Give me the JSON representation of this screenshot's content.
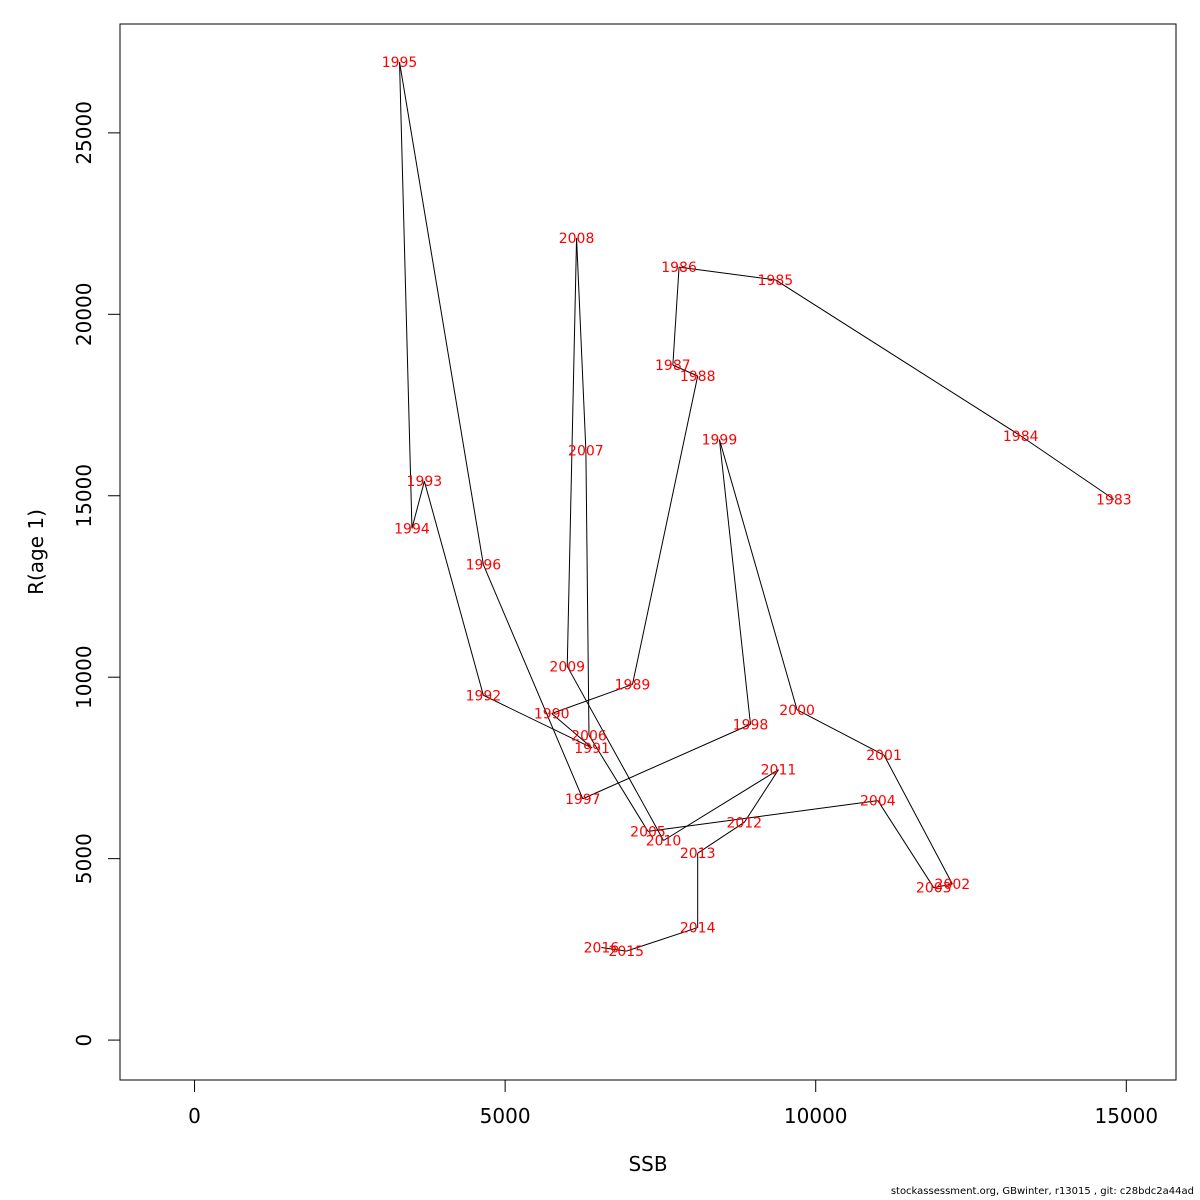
{
  "footer": "stockassessment.org, GBwinter, r13015 , git: c28bdc2a44ad",
  "chart_data": {
    "type": "line",
    "xlabel": "SSB",
    "ylabel": "R(age 1)",
    "xlim": [
      -1200,
      15800
    ],
    "ylim": [
      -1100,
      28000
    ],
    "xticks": [
      0,
      5000,
      10000,
      15000
    ],
    "yticks": [
      0,
      5000,
      10000,
      15000,
      20000,
      25000
    ],
    "grid": false,
    "line_color": "#000000",
    "label_color": "#ff0000",
    "points": [
      {
        "label": "1983",
        "x": 14800,
        "y": 14900
      },
      {
        "label": "1984",
        "x": 13300,
        "y": 16650
      },
      {
        "label": "1985",
        "x": 9350,
        "y": 20950
      },
      {
        "label": "1986",
        "x": 7800,
        "y": 21300
      },
      {
        "label": "1987",
        "x": 7700,
        "y": 18600
      },
      {
        "label": "1988",
        "x": 8100,
        "y": 18300
      },
      {
        "label": "1989",
        "x": 7050,
        "y": 9800
      },
      {
        "label": "1990",
        "x": 5750,
        "y": 9000
      },
      {
        "label": "1991",
        "x": 6400,
        "y": 8050
      },
      {
        "label": "1992",
        "x": 4650,
        "y": 9500
      },
      {
        "label": "1993",
        "x": 3700,
        "y": 15400
      },
      {
        "label": "1994",
        "x": 3500,
        "y": 14100
      },
      {
        "label": "1995",
        "x": 3300,
        "y": 26950
      },
      {
        "label": "1996",
        "x": 4650,
        "y": 13100
      },
      {
        "label": "1997",
        "x": 6250,
        "y": 6650
      },
      {
        "label": "1998",
        "x": 8950,
        "y": 8700
      },
      {
        "label": "1999",
        "x": 8450,
        "y": 16550
      },
      {
        "label": "2000",
        "x": 9700,
        "y": 9100
      },
      {
        "label": "2001",
        "x": 11100,
        "y": 7850
      },
      {
        "label": "2002",
        "x": 12200,
        "y": 4300
      },
      {
        "label": "2003",
        "x": 11900,
        "y": 4200
      },
      {
        "label": "2004",
        "x": 11000,
        "y": 6600
      },
      {
        "label": "2005",
        "x": 7300,
        "y": 5750
      },
      {
        "label": "2006",
        "x": 6350,
        "y": 8400
      },
      {
        "label": "2007",
        "x": 6300,
        "y": 16250
      },
      {
        "label": "2008",
        "x": 6150,
        "y": 22100
      },
      {
        "label": "2009",
        "x": 6000,
        "y": 10300
      },
      {
        "label": "2010",
        "x": 7550,
        "y": 5500
      },
      {
        "label": "2011",
        "x": 9400,
        "y": 7450
      },
      {
        "label": "2012",
        "x": 8850,
        "y": 6000
      },
      {
        "label": "2013",
        "x": 8100,
        "y": 5150
      },
      {
        "label": "2014",
        "x": 8100,
        "y": 3100
      },
      {
        "label": "2015",
        "x": 6950,
        "y": 2450
      },
      {
        "label": "2016",
        "x": 6550,
        "y": 2550
      }
    ]
  }
}
